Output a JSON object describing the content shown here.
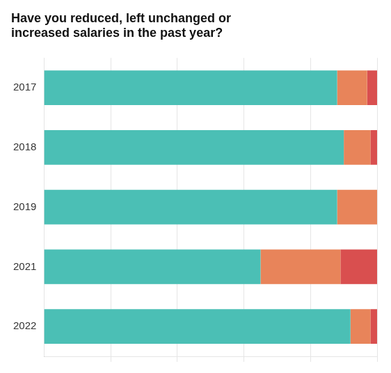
{
  "chart_data": {
    "type": "bar",
    "orientation": "horizontal",
    "stacked": true,
    "title": "Have you reduced, left unchanged or\nincreased salaries in the past year?",
    "categories": [
      "2017",
      "2018",
      "2019",
      "2021",
      "2022"
    ],
    "series": [
      {
        "color": "#4bbfb5",
        "values": [
          88,
          90,
          88,
          65,
          92
        ]
      },
      {
        "color": "#e8845a",
        "values": [
          9,
          8,
          12,
          24,
          6
        ]
      },
      {
        "color": "#d94f4f",
        "values": [
          3,
          2,
          0,
          11,
          2
        ]
      }
    ],
    "xlim": [
      0,
      100
    ],
    "xticks": [
      20,
      40,
      60,
      80,
      100
    ],
    "grid": true,
    "tick_labels": "y"
  }
}
